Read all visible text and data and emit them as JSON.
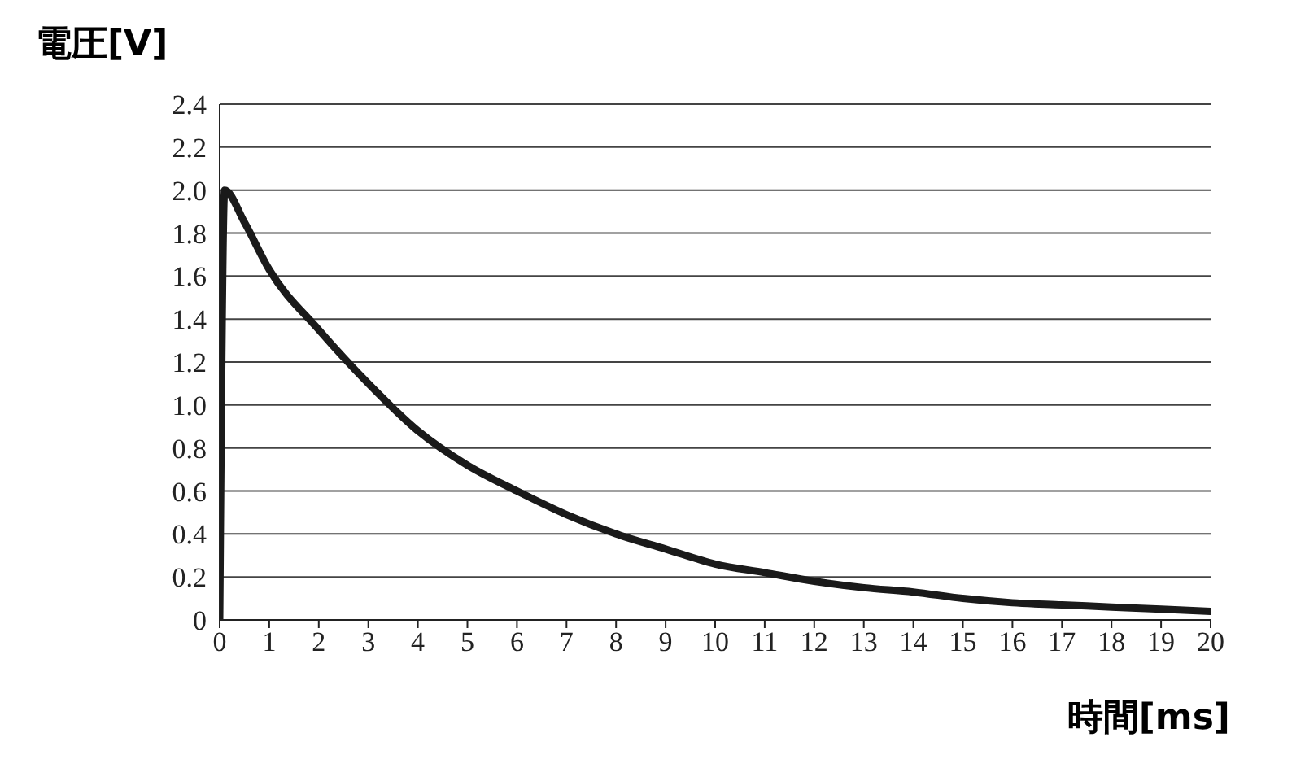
{
  "chart_data": {
    "type": "line",
    "xlabel": "時間[ms]",
    "ylabel": "電圧[V]",
    "x": [
      0,
      0.1,
      0.5,
      1,
      2,
      3,
      4,
      5,
      6,
      7,
      8,
      9,
      10,
      11,
      12,
      13,
      14,
      15,
      16,
      17,
      18,
      19,
      20
    ],
    "series": [
      {
        "color": "#1a1a1a",
        "values": [
          0,
          2.0,
          1.85,
          1.63,
          1.35,
          1.1,
          0.88,
          0.72,
          0.6,
          0.49,
          0.4,
          0.33,
          0.26,
          0.22,
          0.18,
          0.15,
          0.13,
          0.1,
          0.08,
          0.07,
          0.06,
          0.05,
          0.04
        ]
      }
    ],
    "xlim": [
      0,
      20
    ],
    "xticks": [
      0,
      1,
      2,
      3,
      4,
      5,
      6,
      7,
      8,
      9,
      10,
      11,
      12,
      13,
      14,
      15,
      16,
      17,
      18,
      19,
      20
    ],
    "ylim": [
      0,
      2.4
    ],
    "yticks": [
      0,
      0.2,
      0.4,
      0.6,
      0.8,
      {
        "value": 1,
        "label": "1.0"
      },
      1.2,
      1.4,
      1.6,
      1.8,
      {
        "value": 2,
        "label": "2.0"
      },
      2.2,
      2.4
    ],
    "grid": "y",
    "legend": false,
    "marker": "none",
    "line_style": "solid"
  }
}
